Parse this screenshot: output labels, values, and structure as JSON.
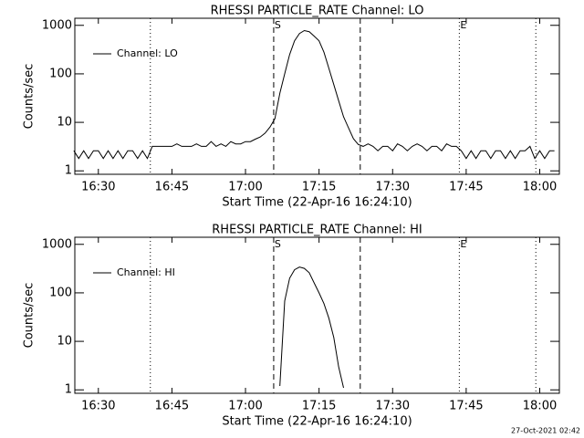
{
  "chart_data": [
    {
      "type": "line",
      "title": "RHESSI PARTICLE_RATE Channel: LO",
      "x_label": "Start Time (22-Apr-16 16:24:10)",
      "y_label": "Counts/sec",
      "log_y": true,
      "grid": false,
      "legend": "upper-left",
      "xlim": [
        25.2,
        124
      ],
      "ylim": [
        0.85,
        1400
      ],
      "xticks": [
        {
          "value": 30,
          "label": "16:30"
        },
        {
          "value": 45,
          "label": "16:45"
        },
        {
          "value": 60,
          "label": "17:00"
        },
        {
          "value": 75,
          "label": "17:15"
        },
        {
          "value": 90,
          "label": "17:30"
        },
        {
          "value": 105,
          "label": "17:45"
        },
        {
          "value": 120,
          "label": "18:00"
        }
      ],
      "yticks": [
        1,
        10,
        100,
        1000
      ],
      "vlines": [
        {
          "x": 40.6,
          "style": "dotted"
        },
        {
          "x": 65.75,
          "style": "dashed"
        },
        {
          "x": 83.4,
          "style": "dashed"
        },
        {
          "x": 103.6,
          "style": "dotted"
        },
        {
          "x": 119.2,
          "style": "dotted"
        }
      ],
      "annotations": [
        {
          "text": "S",
          "x": 65.75
        },
        {
          "text": "E",
          "x": 103.6
        }
      ],
      "x": [
        25,
        26,
        27,
        28,
        29,
        30,
        31,
        32,
        33,
        34,
        35,
        36,
        37,
        38,
        39,
        40,
        41,
        42,
        43,
        44,
        45,
        46,
        47,
        48,
        49,
        50,
        51,
        52,
        53,
        54,
        55,
        56,
        57,
        58,
        59,
        60,
        61,
        62,
        63,
        64,
        65,
        66,
        67,
        68,
        69,
        70,
        71,
        72,
        73,
        74,
        75,
        76,
        77,
        78,
        79,
        80,
        81,
        82,
        83,
        84,
        85,
        86,
        87,
        88,
        89,
        90,
        91,
        92,
        93,
        94,
        95,
        96,
        97,
        98,
        99,
        100,
        101,
        102,
        103,
        104,
        105,
        106,
        107,
        108,
        109,
        110,
        111,
        112,
        113,
        114,
        115,
        116,
        117,
        118,
        119,
        120,
        121,
        122,
        123
      ],
      "series": [
        {
          "name": "Channel: LO",
          "color": "#000000",
          "values": [
            2.6,
            1.8,
            2.6,
            1.8,
            2.6,
            2.6,
            1.8,
            2.6,
            1.8,
            2.6,
            1.8,
            2.6,
            2.6,
            1.8,
            2.6,
            1.8,
            3.2,
            3.2,
            3.2,
            3.2,
            3.2,
            3.6,
            3.2,
            3.2,
            3.2,
            3.6,
            3.2,
            3.2,
            4,
            3.2,
            3.6,
            3.2,
            4,
            3.6,
            3.6,
            4,
            4,
            4.5,
            5,
            6,
            8,
            12,
            40,
            100,
            250,
            480,
            680,
            780,
            740,
            600,
            480,
            280,
            130,
            60,
            28,
            13,
            7.7,
            4.6,
            3.5,
            3.2,
            3.6,
            3.2,
            2.6,
            3.2,
            3.2,
            2.6,
            3.6,
            3.2,
            2.6,
            3.2,
            3.6,
            3.2,
            2.6,
            3.2,
            3.2,
            2.6,
            3.6,
            3.2,
            3.2,
            2.6,
            1.8,
            2.6,
            1.8,
            2.6,
            2.6,
            1.8,
            2.6,
            2.6,
            1.8,
            2.6,
            1.8,
            2.6,
            2.6,
            3.2,
            1.8,
            2.6,
            1.8,
            2.6,
            2.6
          ]
        }
      ]
    },
    {
      "type": "line",
      "title": "RHESSI PARTICLE_RATE Channel: HI",
      "x_label": "Start Time (22-Apr-16 16:24:10)",
      "y_label": "Counts/sec",
      "log_y": true,
      "grid": false,
      "legend": "upper-left",
      "xlim": [
        25.2,
        124
      ],
      "ylim": [
        0.85,
        1400
      ],
      "xticks": [
        {
          "value": 30,
          "label": "16:30"
        },
        {
          "value": 45,
          "label": "16:45"
        },
        {
          "value": 60,
          "label": "17:00"
        },
        {
          "value": 75,
          "label": "17:15"
        },
        {
          "value": 90,
          "label": "17:30"
        },
        {
          "value": 105,
          "label": "17:45"
        },
        {
          "value": 120,
          "label": "18:00"
        }
      ],
      "yticks": [
        1,
        10,
        100,
        1000
      ],
      "vlines": [
        {
          "x": 40.6,
          "style": "dotted"
        },
        {
          "x": 65.75,
          "style": "dashed"
        },
        {
          "x": 83.4,
          "style": "dashed"
        },
        {
          "x": 103.6,
          "style": "dotted"
        },
        {
          "x": 119.2,
          "style": "dotted"
        }
      ],
      "annotations": [
        {
          "text": "S",
          "x": 65.75
        },
        {
          "text": "E",
          "x": 103.6
        }
      ],
      "x": [
        67,
        68,
        69,
        70,
        71,
        72,
        73,
        74,
        75,
        76,
        77,
        78,
        79,
        80
      ],
      "series": [
        {
          "name": "Channel: HI",
          "color": "#000000",
          "values": [
            1.2,
            68,
            200,
            300,
            340,
            320,
            260,
            160,
            100,
            60,
            30,
            12,
            3,
            1.1
          ]
        }
      ]
    }
  ],
  "footer": "27-Oct-2021 02:42"
}
